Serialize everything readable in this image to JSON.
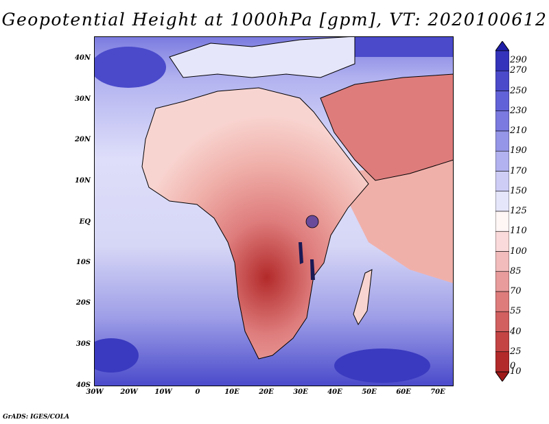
{
  "title": "Geopotential Height at 1000hPa [gpm], VT: 2020100612",
  "credit": "GrADS: IGES/COLA",
  "map": {
    "region": "Africa",
    "lon_range": [
      -30,
      75
    ],
    "lat_range": [
      -40,
      45
    ],
    "lat_ticks": [
      {
        "value": 40,
        "label": "40N"
      },
      {
        "value": 30,
        "label": "30N"
      },
      {
        "value": 20,
        "label": "20N"
      },
      {
        "value": 10,
        "label": "10N"
      },
      {
        "value": 0,
        "label": "EQ"
      },
      {
        "value": -10,
        "label": "10S"
      },
      {
        "value": -20,
        "label": "20S"
      },
      {
        "value": -30,
        "label": "30S"
      },
      {
        "value": -40,
        "label": "40S"
      }
    ],
    "lon_ticks": [
      {
        "value": -30,
        "label": "30W"
      },
      {
        "value": -20,
        "label": "20W"
      },
      {
        "value": -10,
        "label": "10W"
      },
      {
        "value": 0,
        "label": "0"
      },
      {
        "value": 10,
        "label": "10E"
      },
      {
        "value": 20,
        "label": "20E"
      },
      {
        "value": 30,
        "label": "30E"
      },
      {
        "value": 40,
        "label": "40E"
      },
      {
        "value": 50,
        "label": "50E"
      },
      {
        "value": 60,
        "label": "60E"
      },
      {
        "value": 70,
        "label": "70E"
      }
    ],
    "ocean_color": "#dcdcf5",
    "land_color": "#f2a8a2"
  },
  "colorbar": {
    "labels": [
      "290",
      "270",
      "250",
      "230",
      "210",
      "190",
      "170",
      "150",
      "125",
      "110",
      "100",
      "85",
      "70",
      "55",
      "40",
      "25",
      "10",
      "0"
    ],
    "colors": [
      "#1f1fa8",
      "#3333bb",
      "#4a4acb",
      "#6262d8",
      "#7a7ae0",
      "#9696e8",
      "#b2b2f0",
      "#cdcdf6",
      "#e6e6fb",
      "#fff6f6",
      "#fadada",
      "#f2bcbc",
      "#e89c9c",
      "#de7c7c",
      "#d26060",
      "#c44444",
      "#b32a2a",
      "#9e1818"
    ]
  }
}
